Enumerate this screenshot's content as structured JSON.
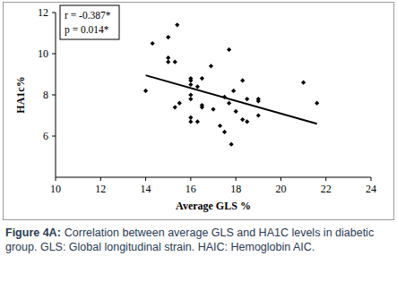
{
  "chart_data": {
    "type": "scatter",
    "x_label": "Average GLS %",
    "y_label": "HA1c%",
    "annotations": [
      "r = -0.387*",
      "p = 0.014*"
    ],
    "x": [
      14.0,
      14.3,
      15.0,
      15.0,
      15.0,
      15.3,
      15.4,
      15.3,
      15.5,
      16.0,
      16.0,
      16.0,
      16.0,
      16.0,
      16.0,
      16.0,
      16.3,
      16.5,
      16.5,
      16.5,
      16.9,
      16.3,
      17.0,
      17.3,
      17.5,
      17.5,
      17.7,
      17.7,
      17.8,
      17.9,
      18.0,
      18.3,
      18.3,
      18.5,
      18.5,
      19.0,
      19.0,
      19.0,
      21.0,
      21.6
    ],
    "y": [
      8.2,
      10.5,
      9.6,
      9.8,
      10.8,
      9.6,
      11.4,
      7.4,
      7.6,
      8.8,
      8.7,
      8.5,
      8.0,
      7.8,
      6.9,
      6.7,
      8.4,
      8.8,
      7.5,
      7.4,
      9.4,
      6.7,
      7.3,
      6.5,
      7.9,
      6.2,
      7.6,
      10.2,
      5.6,
      8.2,
      7.2,
      8.7,
      6.8,
      6.7,
      7.8,
      7.8,
      7.7,
      7.0,
      8.6,
      7.6
    ],
    "trendline": {
      "x": [
        14.0,
        21.6
      ],
      "y": [
        8.95,
        6.6
      ]
    },
    "xlim": [
      10,
      24
    ],
    "xticks": [
      10,
      12,
      14,
      16,
      18,
      20,
      22,
      24
    ],
    "ylim": [
      4,
      12
    ],
    "yticks": [
      6,
      8,
      10,
      12
    ],
    "marker": "diamond",
    "color": "#000000",
    "grid": false
  },
  "caption": {
    "label": "Figure 4A:",
    "text": "Correlation between average GLS and HA1C levels in diabetic group. GLS: Global longitudinal strain. HAIC: Hemoglobin AIC."
  }
}
